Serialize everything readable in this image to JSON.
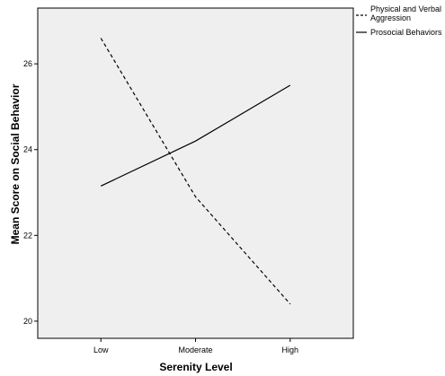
{
  "chart_data": {
    "type": "line",
    "xlabel": "Serenity Level",
    "ylabel": "Mean Score on Social Behavior",
    "categories": [
      "Low",
      "Moderate",
      "High"
    ],
    "ylim": [
      19.6,
      27.3
    ],
    "yticks": [
      20,
      22,
      24,
      26
    ],
    "grid": false,
    "legend_position": "top-right, outside plot",
    "background_color": "#efefef",
    "series": [
      {
        "name": "Physical and Verbal Aggression",
        "values": [
          26.6,
          22.9,
          20.4
        ],
        "line_style": "dashed",
        "color": "#000000"
      },
      {
        "name": "Prosocial Behaviors",
        "values": [
          23.15,
          24.2,
          25.5
        ],
        "line_style": "solid",
        "color": "#000000"
      }
    ]
  }
}
